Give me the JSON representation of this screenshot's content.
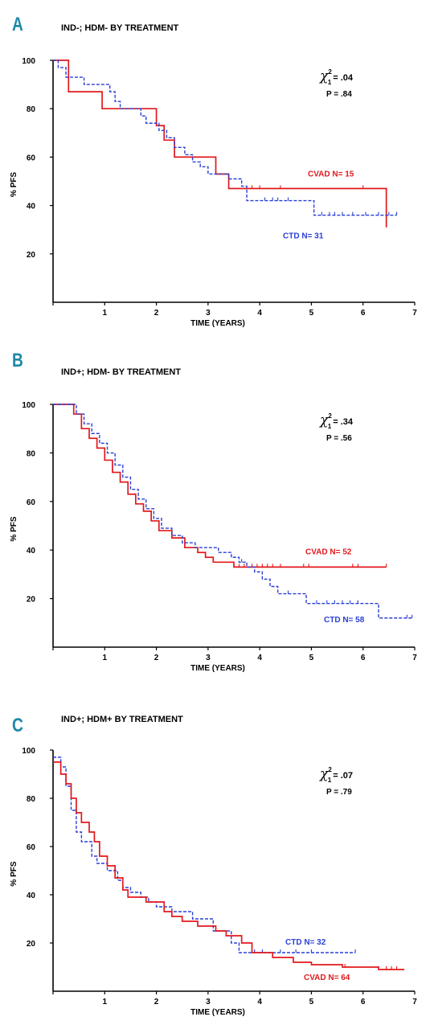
{
  "figure": {
    "panel_letter_color": "#1e88a8",
    "cvad_color": "#e0191c",
    "ctd_color": "#2a3fd6"
  },
  "chart_data": [
    {
      "type": "line",
      "panel_letter": "A",
      "title": "IND-; HDM- BY TREATMENT",
      "xlabel": "TIME (YEARS)",
      "ylabel": "% PFS",
      "xlim": [
        0,
        7
      ],
      "ylim": [
        0,
        100
      ],
      "x_ticks": [
        "1",
        "2",
        "3",
        "4",
        "5",
        "6",
        "7"
      ],
      "y_ticks": [
        "20",
        "40",
        "60",
        "80",
        "100"
      ],
      "stat_chi": ".04",
      "stat_p": "P = .84",
      "series": [
        {
          "name": "CVAD N= 15",
          "color": "#e0191c",
          "dashed": false,
          "label_position": "above-right",
          "steps": [
            [
              0,
              100
            ],
            [
              0.3,
              87
            ],
            [
              0.95,
              80
            ],
            [
              2.0,
              73
            ],
            [
              2.15,
              67
            ],
            [
              2.35,
              60
            ],
            [
              3.15,
              53
            ],
            [
              3.4,
              47
            ],
            [
              6.45,
              31
            ]
          ],
          "end": 6.45,
          "censors": [
            3.85,
            4.0,
            4.4,
            6.0,
            6.45
          ]
        },
        {
          "name": "CTD N= 31",
          "color": "#2a3fd6",
          "dashed": true,
          "label_position": "below-right",
          "steps": [
            [
              0,
              100
            ],
            [
              0.1,
              97
            ],
            [
              0.25,
              93
            ],
            [
              0.6,
              90
            ],
            [
              1.1,
              87
            ],
            [
              1.2,
              83
            ],
            [
              1.3,
              80
            ],
            [
              1.7,
              77
            ],
            [
              1.8,
              74
            ],
            [
              2.05,
              71
            ],
            [
              2.2,
              68
            ],
            [
              2.35,
              64
            ],
            [
              2.55,
              61
            ],
            [
              2.7,
              58
            ],
            [
              2.85,
              56
            ],
            [
              3.0,
              53
            ],
            [
              3.4,
              51
            ],
            [
              3.65,
              48
            ],
            [
              3.75,
              42
            ],
            [
              5.05,
              36
            ],
            [
              6.55,
              36
            ]
          ],
          "end": 6.65,
          "censors": [
            4.1,
            4.25,
            4.35,
            4.55,
            5.2,
            5.35,
            5.45,
            5.6,
            5.8,
            6.05,
            6.3,
            6.5,
            6.65
          ]
        }
      ]
    },
    {
      "type": "line",
      "panel_letter": "B",
      "title": "IND+; HDM- BY TREATMENT",
      "xlabel": "TIME (YEARS)",
      "ylabel": "% PFS",
      "xlim": [
        0,
        7
      ],
      "ylim": [
        0,
        100
      ],
      "x_ticks": [
        "1",
        "2",
        "3",
        "4",
        "5",
        "6",
        "7"
      ],
      "y_ticks": [
        "20",
        "40",
        "60",
        "80",
        "100"
      ],
      "stat_chi": ".34",
      "stat_p": "P = .56",
      "series": [
        {
          "name": "CVAD N= 52",
          "color": "#e0191c",
          "dashed": false,
          "label_position": "above-right",
          "steps": [
            [
              0,
              100
            ],
            [
              0.4,
              96
            ],
            [
              0.55,
              90
            ],
            [
              0.7,
              86
            ],
            [
              0.85,
              82
            ],
            [
              1.0,
              77
            ],
            [
              1.15,
              72
            ],
            [
              1.3,
              68
            ],
            [
              1.45,
              63
            ],
            [
              1.6,
              59
            ],
            [
              1.75,
              56
            ],
            [
              1.9,
              52
            ],
            [
              2.05,
              48
            ],
            [
              2.3,
              45
            ],
            [
              2.55,
              41
            ],
            [
              2.8,
              39
            ],
            [
              2.95,
              37
            ],
            [
              3.1,
              35
            ],
            [
              3.5,
              33
            ]
          ],
          "end": 6.45,
          "censors": [
            3.6,
            3.7,
            3.85,
            3.95,
            4.05,
            4.15,
            4.25,
            4.4,
            4.85,
            4.95,
            5.8,
            5.9,
            6.45
          ]
        },
        {
          "name": "CTD N= 58",
          "color": "#2a3fd6",
          "dashed": true,
          "label_position": "below-right",
          "steps": [
            [
              0,
              100
            ],
            [
              0.45,
              96
            ],
            [
              0.6,
              92
            ],
            [
              0.75,
              88
            ],
            [
              0.9,
              84
            ],
            [
              1.05,
              80
            ],
            [
              1.2,
              75
            ],
            [
              1.35,
              70
            ],
            [
              1.5,
              65
            ],
            [
              1.65,
              61
            ],
            [
              1.8,
              57
            ],
            [
              1.95,
              53
            ],
            [
              2.1,
              49
            ],
            [
              2.3,
              46
            ],
            [
              2.5,
              43
            ],
            [
              2.75,
              41
            ],
            [
              3.2,
              39
            ],
            [
              3.45,
              37
            ],
            [
              3.6,
              35
            ],
            [
              3.75,
              33
            ],
            [
              3.9,
              31
            ],
            [
              4.05,
              28
            ],
            [
              4.2,
              25
            ],
            [
              4.35,
              22
            ],
            [
              4.9,
              18
            ],
            [
              6.3,
              12
            ]
          ],
          "end": 6.95,
          "censors": [
            3.65,
            4.55,
            5.1,
            5.3,
            5.45,
            5.6,
            5.75,
            5.9,
            6.85,
            6.95
          ]
        }
      ]
    },
    {
      "type": "line",
      "panel_letter": "C",
      "title": "IND+; HDM+ BY TREATMENT",
      "xlabel": "TIME (YEARS)",
      "ylabel": "% PFS",
      "xlim": [
        0,
        7
      ],
      "ylim": [
        0,
        100
      ],
      "x_ticks": [
        "1",
        "2",
        "3",
        "4",
        "5",
        "6",
        "7"
      ],
      "y_ticks": [
        "20",
        "40",
        "60",
        "80",
        "100"
      ],
      "stat_chi": ".07",
      "stat_p": "P = .79",
      "series": [
        {
          "name": "CTD N= 32",
          "color": "#2a3fd6",
          "dashed": true,
          "label_position": "above-right",
          "steps": [
            [
              0,
              97
            ],
            [
              0.15,
              93
            ],
            [
              0.25,
              85
            ],
            [
              0.35,
              75
            ],
            [
              0.45,
              66
            ],
            [
              0.55,
              62
            ],
            [
              0.75,
              56
            ],
            [
              0.85,
              53
            ],
            [
              1.05,
              50
            ],
            [
              1.25,
              46
            ],
            [
              1.35,
              43
            ],
            [
              1.5,
              41
            ],
            [
              1.7,
              39
            ],
            [
              1.85,
              37
            ],
            [
              2.0,
              35
            ],
            [
              2.3,
              33
            ],
            [
              2.7,
              30
            ],
            [
              3.1,
              25
            ],
            [
              3.45,
              20
            ],
            [
              3.6,
              16
            ]
          ],
          "end": 5.85,
          "censors": [
            3.9,
            4.05,
            4.4,
            4.7,
            5.0,
            5.85
          ]
        },
        {
          "name": "CVAD N= 64",
          "color": "#e0191c",
          "dashed": false,
          "label_position": "below-right",
          "steps": [
            [
              0,
              95
            ],
            [
              0.15,
              90
            ],
            [
              0.25,
              86
            ],
            [
              0.35,
              80
            ],
            [
              0.45,
              74
            ],
            [
              0.55,
              70
            ],
            [
              0.7,
              66
            ],
            [
              0.8,
              62
            ],
            [
              0.9,
              56
            ],
            [
              1.05,
              52
            ],
            [
              1.2,
              47
            ],
            [
              1.35,
              42
            ],
            [
              1.45,
              39
            ],
            [
              1.8,
              37
            ],
            [
              2.15,
              33
            ],
            [
              2.3,
              31
            ],
            [
              2.5,
              29
            ],
            [
              2.8,
              27
            ],
            [
              3.15,
              25
            ],
            [
              3.35,
              23
            ],
            [
              3.65,
              20
            ],
            [
              3.85,
              16
            ],
            [
              4.25,
              14
            ],
            [
              4.65,
              12
            ],
            [
              5.0,
              11
            ],
            [
              5.6,
              10
            ],
            [
              6.3,
              9
            ]
          ],
          "end": 6.8,
          "censors": [
            5.65,
            6.3,
            6.45,
            6.55,
            6.65
          ]
        }
      ]
    }
  ]
}
